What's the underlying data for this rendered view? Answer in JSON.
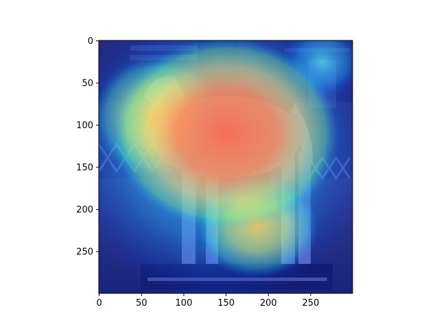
{
  "chart_data": {
    "type": "heatmap",
    "title": "",
    "xlabel": "",
    "ylabel": "",
    "xlim": [
      0,
      299
    ],
    "ylim": [
      299,
      0
    ],
    "x_ticks": [
      0,
      50,
      100,
      150,
      200,
      250
    ],
    "y_ticks": [
      0,
      50,
      100,
      150,
      200,
      250
    ],
    "colormap": "jet",
    "overlay_on": "grayscale photograph",
    "grid": false,
    "hot_regions": [
      {
        "x": 165,
        "y": 75,
        "level": 1.0
      },
      {
        "x": 135,
        "y": 140,
        "level": 0.85
      },
      {
        "x": 70,
        "y": 120,
        "level": 0.55
      },
      {
        "x": 185,
        "y": 225,
        "level": 0.5
      },
      {
        "x": 265,
        "y": 30,
        "level": 0.3
      }
    ]
  }
}
